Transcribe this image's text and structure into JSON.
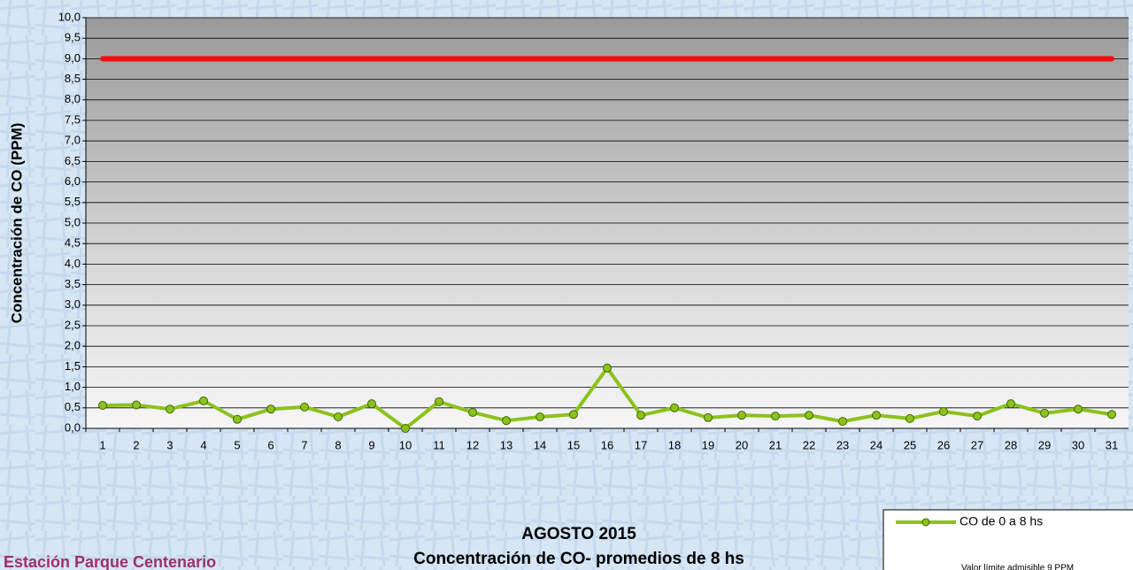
{
  "chart_data": {
    "type": "line",
    "title": "AGOSTO 2015",
    "subtitle": "Concentración de CO- promedios de 8 hs",
    "station": "Estación Parque Centenario",
    "y_label": "Concentración de CO (PPM)",
    "categories": [
      "1",
      "2",
      "3",
      "4",
      "5",
      "6",
      "7",
      "8",
      "9",
      "10",
      "11",
      "12",
      "13",
      "14",
      "15",
      "16",
      "17",
      "18",
      "19",
      "20",
      "21",
      "22",
      "23",
      "24",
      "25",
      "26",
      "27",
      "28",
      "29",
      "30",
      "31"
    ],
    "series": [
      {
        "name": "CO de 0 a 8 hs",
        "color": "#8cc21c",
        "markers": true,
        "values": [
          0.56,
          0.57,
          0.47,
          0.67,
          0.22,
          0.47,
          0.52,
          0.28,
          0.6,
          0,
          0.65,
          0.39,
          0.19,
          0.28,
          0.34,
          1.47,
          0.32,
          0.5,
          0.26,
          0.32,
          0.3,
          0.32,
          0.17,
          0.32,
          0.24,
          0.41,
          0.3,
          0.6,
          0.37,
          0.47,
          0.34
        ]
      },
      {
        "name": "Valor límite admisible 9 PPM",
        "color": "#ee1111",
        "markers": false,
        "values": [
          9,
          9,
          9,
          9,
          9,
          9,
          9,
          9,
          9,
          9,
          9,
          9,
          9,
          9,
          9,
          9,
          9,
          9,
          9,
          9,
          9,
          9,
          9,
          9,
          9,
          9,
          9,
          9,
          9,
          9,
          9
        ]
      }
    ],
    "ylim": [
      0,
      10
    ],
    "yticks": [
      {
        "value": 0,
        "label": "0,0"
      },
      {
        "value": 0.5,
        "label": "0,5"
      },
      {
        "value": 1,
        "label": "1,0"
      },
      {
        "value": 1.5,
        "label": "1,5"
      },
      {
        "value": 2,
        "label": "2,0"
      },
      {
        "value": 2.5,
        "label": "2,5"
      },
      {
        "value": 3,
        "label": "3,0"
      },
      {
        "value": 3.5,
        "label": "3,5"
      },
      {
        "value": 4,
        "label": "4,0"
      },
      {
        "value": 4.5,
        "label": "4,5"
      },
      {
        "value": 5,
        "label": "5,0"
      },
      {
        "value": 5.5,
        "label": "5,5"
      },
      {
        "value": 6,
        "label": "6,0"
      },
      {
        "value": 6.5,
        "label": "6,5"
      },
      {
        "value": 7,
        "label": "7,0"
      },
      {
        "value": 7.5,
        "label": "7,5"
      },
      {
        "value": 8,
        "label": "8,0"
      },
      {
        "value": 8.5,
        "label": "8,5"
      },
      {
        "value": 9,
        "label": "9,0"
      },
      {
        "value": 9.5,
        "label": "9,5"
      },
      {
        "value": 10,
        "label": "10,0"
      }
    ],
    "grid": true,
    "legend": "bottom-right"
  }
}
